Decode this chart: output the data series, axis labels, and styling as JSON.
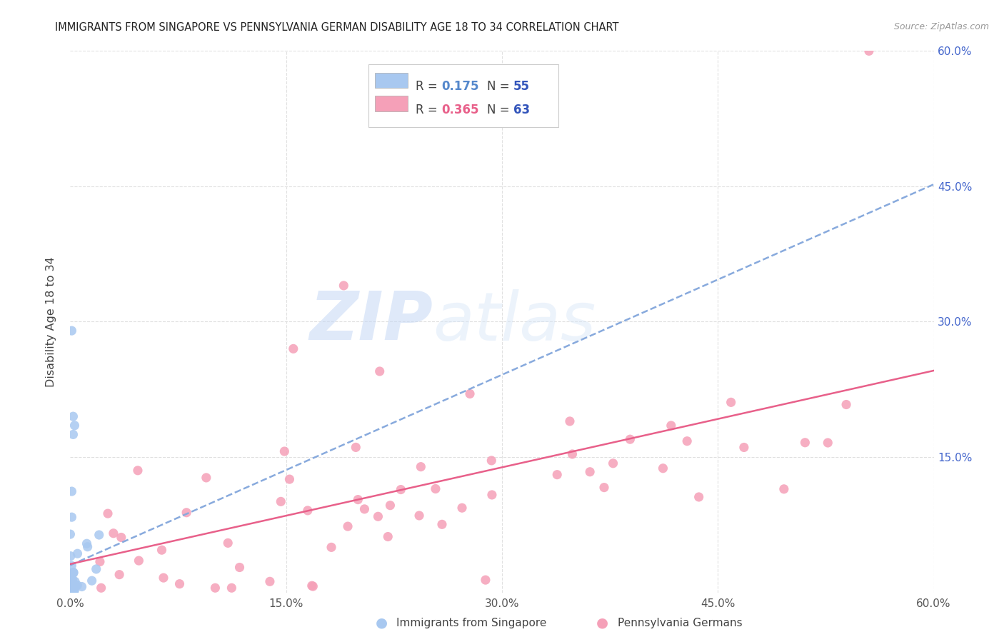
{
  "title": "IMMIGRANTS FROM SINGAPORE VS PENNSYLVANIA GERMAN DISABILITY AGE 18 TO 34 CORRELATION CHART",
  "source": "Source: ZipAtlas.com",
  "ylabel": "Disability Age 18 to 34",
  "xlim": [
    0.0,
    0.6
  ],
  "ylim": [
    0.0,
    0.6
  ],
  "singapore_R": 0.175,
  "singapore_N": 55,
  "pagerman_R": 0.365,
  "pagerman_N": 63,
  "singapore_color": "#a8c8f0",
  "pagerman_color": "#f5a0b8",
  "singapore_line_color": "#88aadd",
  "pagerman_line_color": "#e8608a",
  "watermark_color": "#d0dff0",
  "background_color": "#ffffff",
  "grid_color": "#e0e0e0",
  "legend_R_color_singapore": "#5588cc",
  "legend_R_color_pagerman": "#e8608a",
  "legend_N_color": "#3355bb",
  "title_color": "#222222",
  "source_color": "#999999",
  "tick_color": "#555555",
  "right_tick_color": "#4466cc",
  "ylabel_color": "#444444"
}
